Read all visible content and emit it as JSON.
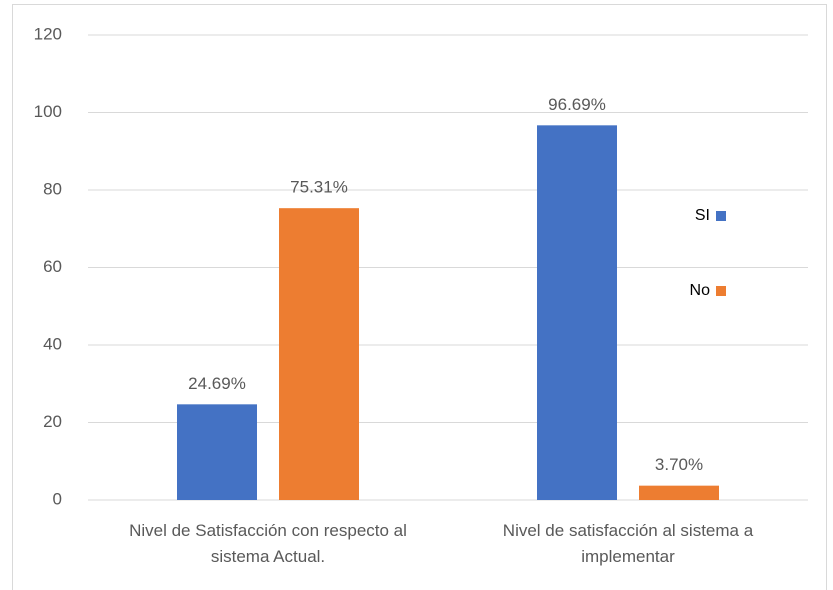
{
  "chart_data": {
    "type": "bar",
    "categories": [
      "Nivel de Satisfacción con respecto al sistema Actual.",
      "Nivel de satisfacción al sistema a implementar"
    ],
    "series": [
      {
        "name": "SI",
        "color": "#4472c4",
        "values": [
          24.69,
          96.69
        ],
        "value_labels": [
          "24.69%",
          "96.69%"
        ]
      },
      {
        "name": "No",
        "color": "#ed7d31",
        "values": [
          75.31,
          3.7
        ],
        "value_labels": [
          "75.31%",
          "3.70%"
        ]
      }
    ],
    "ylim": [
      0,
      120
    ],
    "yticks": [
      0,
      20,
      40,
      60,
      80,
      100,
      120
    ],
    "grid": true,
    "legend": "right"
  }
}
